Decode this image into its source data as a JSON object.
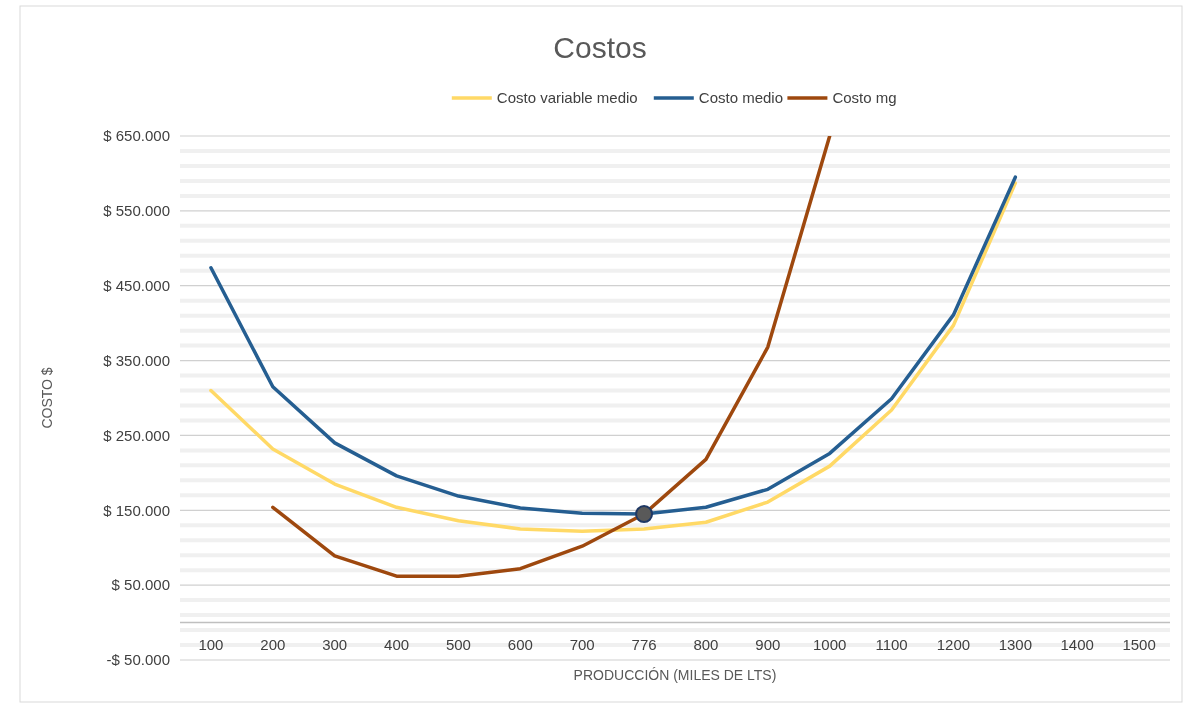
{
  "chart_data": {
    "type": "line",
    "title": "Costos",
    "xlabel": "PRODUCCIÓN (MILES DE LTS)",
    "ylabel": "COSTO $",
    "categories": [
      "100",
      "200",
      "300",
      "400",
      "500",
      "600",
      "700",
      "776",
      "800",
      "900",
      "1000",
      "1100",
      "1200",
      "1300",
      "1400",
      "1500"
    ],
    "series": [
      {
        "name": "Costo variable medio",
        "color": "#ffd966",
        "values": [
          310000,
          232000,
          185000,
          154000,
          136000,
          125000,
          122000,
          125000,
          134000,
          161000,
          209000,
          284000,
          397000,
          587000,
          null,
          null
        ]
      },
      {
        "name": "Costo medio",
        "color": "#255e91",
        "values": [
          474000,
          315000,
          240000,
          196000,
          169000,
          153000,
          146000,
          145000,
          154000,
          178000,
          226000,
          299000,
          411000,
          595000,
          null,
          null
        ]
      },
      {
        "name": "Costo mg",
        "color": "#9e480e",
        "values": [
          null,
          154000,
          89000,
          62000,
          62000,
          72000,
          102000,
          145000,
          218000,
          368000,
          650000,
          null,
          null,
          null,
          null,
          null
        ]
      },
      {
        "type": "scatter",
        "x": [
          "776"
        ],
        "color": "#595959",
        "marker": "circle",
        "values": [
          145000
        ]
      }
    ],
    "ylim": [
      -50000,
      650000
    ],
    "yticks": [
      {
        "value": -50000,
        "label": "-$ 50.000"
      },
      {
        "value": -30000,
        "label": null
      },
      {
        "value": -10000,
        "label": null
      },
      {
        "value": 10000,
        "label": null
      },
      {
        "value": 30000,
        "label": null
      },
      {
        "value": 50000,
        "label": "$ 50.000"
      },
      {
        "value": 70000,
        "label": null
      },
      {
        "value": 90000,
        "label": null
      },
      {
        "value": 110000,
        "label": null
      },
      {
        "value": 130000,
        "label": null
      },
      {
        "value": 150000,
        "label": "$ 150.000"
      },
      {
        "value": 170000,
        "label": null
      },
      {
        "value": 190000,
        "label": null
      },
      {
        "value": 210000,
        "label": null
      },
      {
        "value": 230000,
        "label": null
      },
      {
        "value": 250000,
        "label": "$ 250.000"
      },
      {
        "value": 270000,
        "label": null
      },
      {
        "value": 290000,
        "label": null
      },
      {
        "value": 310000,
        "label": null
      },
      {
        "value": 330000,
        "label": null
      },
      {
        "value": 350000,
        "label": "$ 350.000"
      },
      {
        "value": 370000,
        "label": null
      },
      {
        "value": 390000,
        "label": null
      },
      {
        "value": 410000,
        "label": null
      },
      {
        "value": 430000,
        "label": null
      },
      {
        "value": 450000,
        "label": "$ 450.000"
      },
      {
        "value": 470000,
        "label": null
      },
      {
        "value": 490000,
        "label": null
      },
      {
        "value": 510000,
        "label": null
      },
      {
        "value": 530000,
        "label": null
      },
      {
        "value": 550000,
        "label": "$ 550.000"
      },
      {
        "value": 570000,
        "label": null
      },
      {
        "value": 590000,
        "label": null
      },
      {
        "value": 610000,
        "label": null
      },
      {
        "value": 630000,
        "label": null
      },
      {
        "value": 650000,
        "label": "$ 650.000"
      }
    ],
    "grid": "y",
    "legend": "top",
    "line_style": "solid"
  }
}
